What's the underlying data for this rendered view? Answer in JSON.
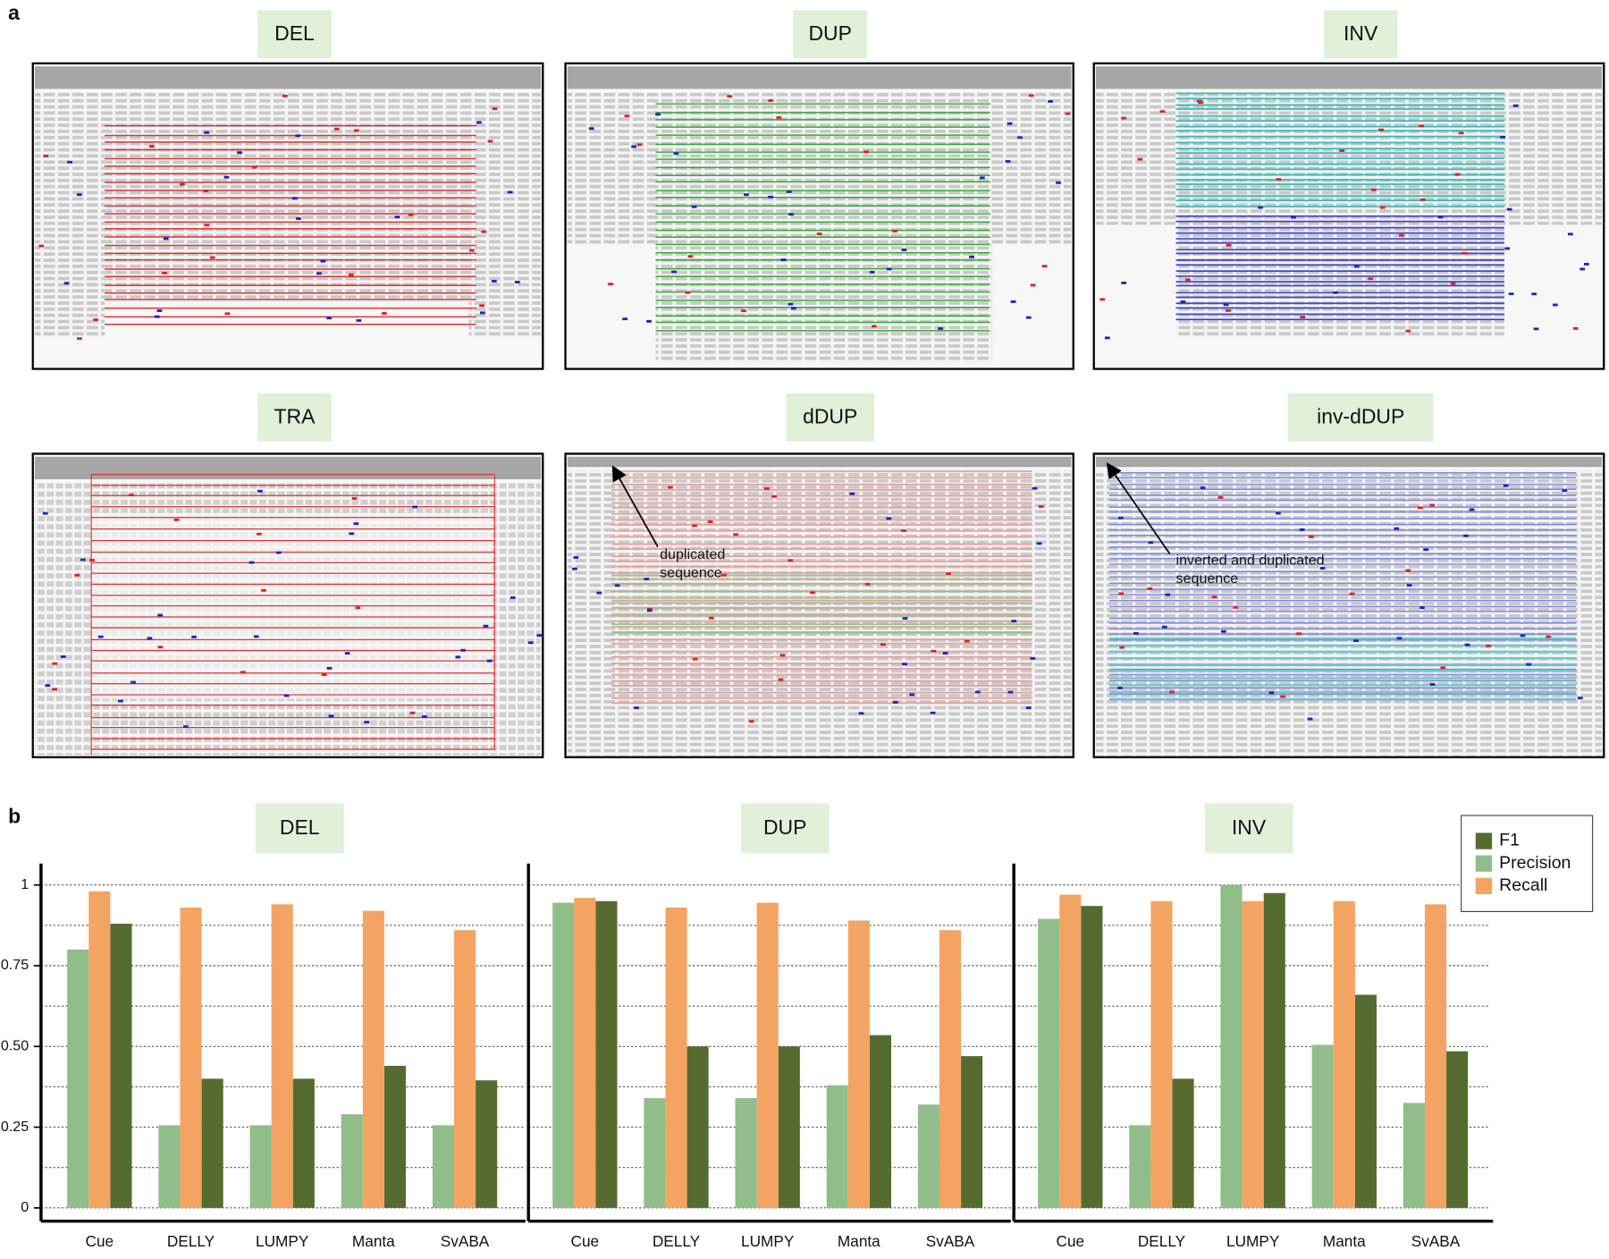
{
  "panel_a": {
    "label": "a",
    "panels": [
      {
        "title": "DEL"
      },
      {
        "title": "DUP"
      },
      {
        "title": "INV"
      },
      {
        "title": "TRA"
      },
      {
        "title": "dDUP"
      },
      {
        "title": "inv-dDUP"
      }
    ],
    "annotations": [
      {
        "lines": [
          "duplicated",
          "sequence"
        ]
      },
      {
        "lines": [
          "inverted and duplicated",
          "sequence"
        ]
      }
    ]
  },
  "panel_b_label": "b",
  "chart_data": [
    {
      "type": "bar",
      "title": "DEL",
      "categories": [
        "Cue",
        "DELLY",
        "LUMPY",
        "Manta",
        "SvABA"
      ],
      "series": [
        {
          "name": "F1",
          "color": "#566b30",
          "values": [
            0.88,
            0.4,
            0.4,
            0.44,
            0.395
          ]
        },
        {
          "name": "Precision",
          "color": "#91bd8a",
          "values": [
            0.8,
            0.256,
            0.256,
            0.29,
            0.256
          ]
        },
        {
          "name": "Recall",
          "color": "#f3a462",
          "values": [
            0.98,
            0.93,
            0.94,
            0.92,
            0.86
          ]
        }
      ],
      "ylim": [
        0,
        1
      ],
      "yticks": [
        0,
        {
          "value": 0.25,
          "label": "0.25"
        },
        {
          "value": 0.5,
          "label": "0.50"
        },
        {
          "value": 0.75,
          "label": "0.75"
        },
        1
      ],
      "minor_yticks": [
        0.125,
        0.375,
        0.625,
        0.875
      ],
      "grid": true
    },
    {
      "type": "bar",
      "title": "DUP",
      "categories": [
        "Cue",
        "DELLY",
        "LUMPY",
        "Manta",
        "SvABA"
      ],
      "series": [
        {
          "name": "F1",
          "color": "#566b30",
          "values": [
            0.95,
            0.5,
            0.5,
            0.535,
            0.47
          ]
        },
        {
          "name": "Precision",
          "color": "#91bd8a",
          "values": [
            0.945,
            0.34,
            0.34,
            0.38,
            0.32
          ]
        },
        {
          "name": "Recall",
          "color": "#f3a462",
          "values": [
            0.96,
            0.93,
            0.945,
            0.89,
            0.86
          ]
        }
      ],
      "ylim": [
        0,
        1
      ],
      "yticks": [
        0,
        {
          "value": 0.25,
          "label": "0.25"
        },
        {
          "value": 0.5,
          "label": "0.50"
        },
        {
          "value": 0.75,
          "label": "0.75"
        },
        1
      ],
      "minor_yticks": [
        0.125,
        0.375,
        0.625,
        0.875
      ],
      "grid": true
    },
    {
      "type": "bar",
      "title": "INV",
      "categories": [
        "Cue",
        "DELLY",
        "LUMPY",
        "Manta",
        "SvABA"
      ],
      "series": [
        {
          "name": "F1",
          "color": "#566b30",
          "values": [
            0.935,
            0.4,
            0.975,
            0.66,
            0.485
          ]
        },
        {
          "name": "Precision",
          "color": "#91bd8a",
          "values": [
            0.895,
            0.256,
            1.0,
            0.505,
            0.325
          ]
        },
        {
          "name": "Recall",
          "color": "#f3a462",
          "values": [
            0.97,
            0.95,
            0.95,
            0.95,
            0.94
          ]
        }
      ],
      "ylim": [
        0,
        1
      ],
      "yticks": [
        0,
        {
          "value": 0.25,
          "label": "0.25"
        },
        {
          "value": 0.5,
          "label": "0.50"
        },
        {
          "value": 0.75,
          "label": "0.75"
        },
        1
      ],
      "minor_yticks": [
        0.125,
        0.375,
        0.625,
        0.875
      ],
      "grid": true,
      "legend": "upper right"
    }
  ]
}
